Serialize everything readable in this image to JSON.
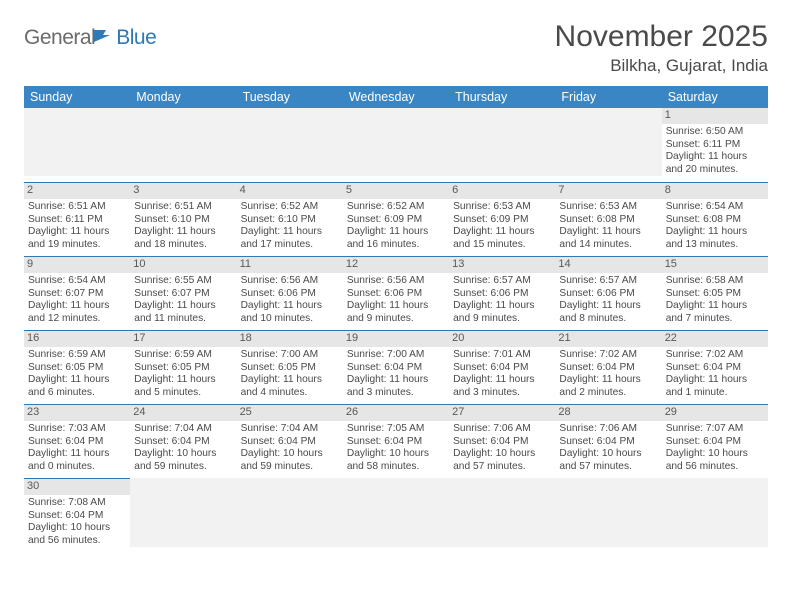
{
  "logo": {
    "general": "General",
    "blue": "Blue"
  },
  "title": "November 2025",
  "location": "Bilkha, Gujarat, India",
  "header_color": "#3a85c4",
  "accent_color": "#2e79b6",
  "text_color": "#4a4a4a",
  "days_of_week": [
    "Sunday",
    "Monday",
    "Tuesday",
    "Wednesday",
    "Thursday",
    "Friday",
    "Saturday"
  ],
  "weeks": [
    [
      null,
      null,
      null,
      null,
      null,
      null,
      {
        "n": "1",
        "sr": "6:50 AM",
        "ss": "6:11 PM",
        "dl": "11 hours and 20 minutes."
      }
    ],
    [
      {
        "n": "2",
        "sr": "6:51 AM",
        "ss": "6:11 PM",
        "dl": "11 hours and 19 minutes."
      },
      {
        "n": "3",
        "sr": "6:51 AM",
        "ss": "6:10 PM",
        "dl": "11 hours and 18 minutes."
      },
      {
        "n": "4",
        "sr": "6:52 AM",
        "ss": "6:10 PM",
        "dl": "11 hours and 17 minutes."
      },
      {
        "n": "5",
        "sr": "6:52 AM",
        "ss": "6:09 PM",
        "dl": "11 hours and 16 minutes."
      },
      {
        "n": "6",
        "sr": "6:53 AM",
        "ss": "6:09 PM",
        "dl": "11 hours and 15 minutes."
      },
      {
        "n": "7",
        "sr": "6:53 AM",
        "ss": "6:08 PM",
        "dl": "11 hours and 14 minutes."
      },
      {
        "n": "8",
        "sr": "6:54 AM",
        "ss": "6:08 PM",
        "dl": "11 hours and 13 minutes."
      }
    ],
    [
      {
        "n": "9",
        "sr": "6:54 AM",
        "ss": "6:07 PM",
        "dl": "11 hours and 12 minutes."
      },
      {
        "n": "10",
        "sr": "6:55 AM",
        "ss": "6:07 PM",
        "dl": "11 hours and 11 minutes."
      },
      {
        "n": "11",
        "sr": "6:56 AM",
        "ss": "6:06 PM",
        "dl": "11 hours and 10 minutes."
      },
      {
        "n": "12",
        "sr": "6:56 AM",
        "ss": "6:06 PM",
        "dl": "11 hours and 9 minutes."
      },
      {
        "n": "13",
        "sr": "6:57 AM",
        "ss": "6:06 PM",
        "dl": "11 hours and 9 minutes."
      },
      {
        "n": "14",
        "sr": "6:57 AM",
        "ss": "6:06 PM",
        "dl": "11 hours and 8 minutes."
      },
      {
        "n": "15",
        "sr": "6:58 AM",
        "ss": "6:05 PM",
        "dl": "11 hours and 7 minutes."
      }
    ],
    [
      {
        "n": "16",
        "sr": "6:59 AM",
        "ss": "6:05 PM",
        "dl": "11 hours and 6 minutes."
      },
      {
        "n": "17",
        "sr": "6:59 AM",
        "ss": "6:05 PM",
        "dl": "11 hours and 5 minutes."
      },
      {
        "n": "18",
        "sr": "7:00 AM",
        "ss": "6:05 PM",
        "dl": "11 hours and 4 minutes."
      },
      {
        "n": "19",
        "sr": "7:00 AM",
        "ss": "6:04 PM",
        "dl": "11 hours and 3 minutes."
      },
      {
        "n": "20",
        "sr": "7:01 AM",
        "ss": "6:04 PM",
        "dl": "11 hours and 3 minutes."
      },
      {
        "n": "21",
        "sr": "7:02 AM",
        "ss": "6:04 PM",
        "dl": "11 hours and 2 minutes."
      },
      {
        "n": "22",
        "sr": "7:02 AM",
        "ss": "6:04 PM",
        "dl": "11 hours and 1 minute."
      }
    ],
    [
      {
        "n": "23",
        "sr": "7:03 AM",
        "ss": "6:04 PM",
        "dl": "11 hours and 0 minutes."
      },
      {
        "n": "24",
        "sr": "7:04 AM",
        "ss": "6:04 PM",
        "dl": "10 hours and 59 minutes."
      },
      {
        "n": "25",
        "sr": "7:04 AM",
        "ss": "6:04 PM",
        "dl": "10 hours and 59 minutes."
      },
      {
        "n": "26",
        "sr": "7:05 AM",
        "ss": "6:04 PM",
        "dl": "10 hours and 58 minutes."
      },
      {
        "n": "27",
        "sr": "7:06 AM",
        "ss": "6:04 PM",
        "dl": "10 hours and 57 minutes."
      },
      {
        "n": "28",
        "sr": "7:06 AM",
        "ss": "6:04 PM",
        "dl": "10 hours and 57 minutes."
      },
      {
        "n": "29",
        "sr": "7:07 AM",
        "ss": "6:04 PM",
        "dl": "10 hours and 56 minutes."
      }
    ],
    [
      {
        "n": "30",
        "sr": "7:08 AM",
        "ss": "6:04 PM",
        "dl": "10 hours and 56 minutes."
      },
      null,
      null,
      null,
      null,
      null,
      null
    ]
  ],
  "labels": {
    "sunrise": "Sunrise: ",
    "sunset": "Sunset: ",
    "daylight": "Daylight: "
  }
}
